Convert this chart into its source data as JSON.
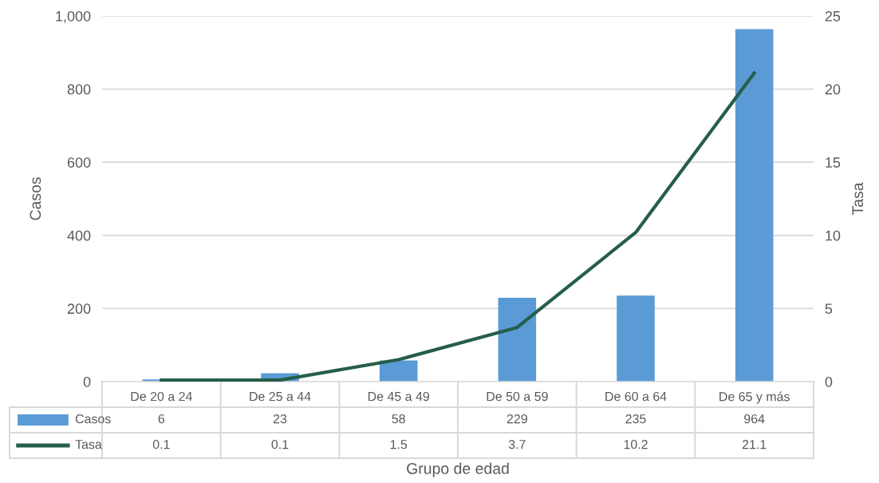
{
  "chart_data": {
    "type": "bar",
    "categories": [
      "De 20 a 24",
      "De 25 a 44",
      "De 45 a 49",
      "De 50 a 59",
      "De 60 a 64",
      "De 65 y más"
    ],
    "series": [
      {
        "name": "Casos",
        "color": "#5b9bd5",
        "values": [
          6,
          23,
          58,
          229,
          235,
          964
        ]
      },
      {
        "name": "Tasa",
        "type": "line",
        "axis": "y2",
        "color": "#255e4b",
        "values": [
          0.1,
          0.1,
          1.5,
          3.7,
          10.2,
          21.1
        ]
      }
    ],
    "xlabel": "Grupo de edad",
    "ylabel": "Casos",
    "y2label": "Tasa",
    "ylim": [
      0,
      1000
    ],
    "yticks": [
      0,
      200,
      400,
      600,
      {
        "value": 800,
        "label": "800"
      },
      {
        "value": 1000,
        "label": "1,000"
      }
    ],
    "y2lim": [
      0,
      25
    ],
    "y2ticks": [
      0,
      5,
      10,
      15,
      20,
      25
    ],
    "grid": "y",
    "legend": "bottom",
    "data_labels": true,
    "marker": "none",
    "line_style": "solid"
  }
}
